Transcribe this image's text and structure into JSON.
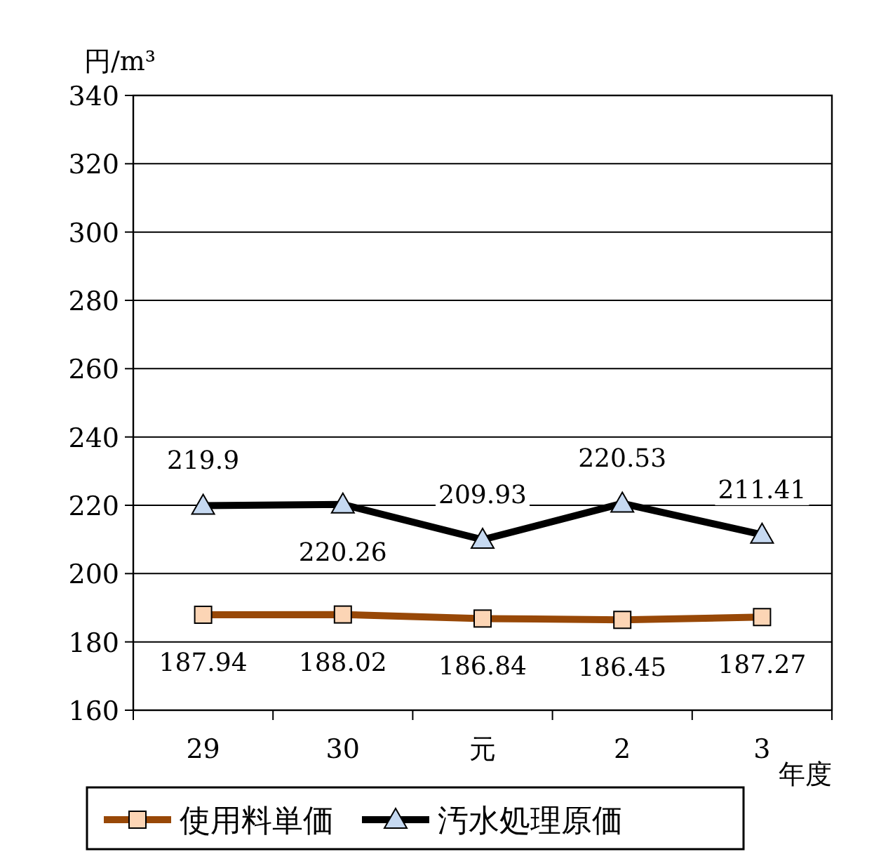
{
  "chart_data": {
    "type": "line",
    "ylabel": "円/m³",
    "xlabel": "年度",
    "categories": [
      "29",
      "30",
      "元",
      "2",
      "3"
    ],
    "series": [
      {
        "name": "使用料単価",
        "color": "#984807",
        "marker": "square",
        "values": [
          187.94,
          188.02,
          186.84,
          186.45,
          187.27
        ]
      },
      {
        "name": "汚水処理原価",
        "color": "#000000",
        "marker": "triangle",
        "values": [
          219.9,
          220.26,
          209.93,
          220.53,
          211.41
        ]
      }
    ],
    "ylim": [
      160,
      340
    ],
    "yticks": [
      160,
      180,
      200,
      220,
      240,
      260,
      280,
      300,
      320,
      340
    ],
    "grid": "y",
    "legend": "bottom",
    "data_labels": true
  }
}
